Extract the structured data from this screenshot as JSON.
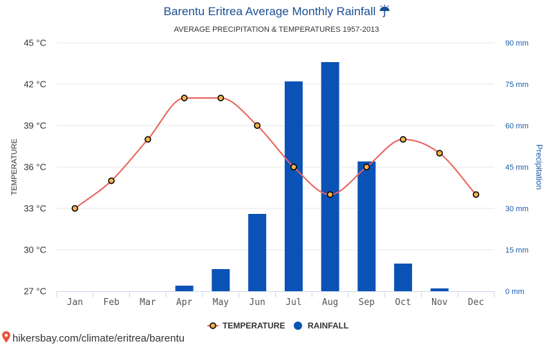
{
  "colors": {
    "title": "#1b4f96",
    "temperature_line": "#e8625c",
    "temperature_marker": "#f4b24a",
    "rainfall_bar": "#0a52b5",
    "right_axis": "#1a5aa8",
    "grid": "#e6e6e6",
    "axis_line": "#ccd6eb",
    "footer_pin": "#e8543a"
  },
  "title_icon": "umbrella-icon",
  "footer": {
    "icon": "location-pin-icon",
    "text": "hikersbay.com/climate/eritrea/barentu"
  },
  "chart_data": {
    "type": "bar",
    "title": "Barentu Eritrea Average Monthly Rainfall",
    "subtitle": "AVERAGE PRECIPITATION & TEMPERATURES 1957-2013",
    "categories": [
      "Jan",
      "Feb",
      "Mar",
      "Apr",
      "May",
      "Jun",
      "Jul",
      "Aug",
      "Sep",
      "Oct",
      "Nov",
      "Dec"
    ],
    "series": [
      {
        "name": "TEMPERATURE",
        "type": "line",
        "axis": "left",
        "unit": "°C",
        "values": [
          33,
          35,
          38,
          41,
          41,
          39,
          36,
          34,
          36,
          38,
          37,
          34
        ]
      },
      {
        "name": "RAINFALL",
        "type": "bar",
        "axis": "right",
        "unit": "mm",
        "values": [
          0,
          0,
          0,
          2,
          8,
          28,
          76,
          83,
          47,
          10,
          1,
          0
        ]
      }
    ],
    "ylabel_left": "TEMPERATURE",
    "ylabel_right": "Precipitation",
    "ylim_left": [
      27,
      45
    ],
    "ylim_right": [
      0,
      90
    ],
    "yticks_left": [
      "27 °C",
      "30 °C",
      "33 °C",
      "36 °C",
      "39 °C",
      "42 °C",
      "45 °C"
    ],
    "yticks_right": [
      "0 mm",
      "15 mm",
      "30 mm",
      "45 mm",
      "60 mm",
      "75 mm",
      "90 mm"
    ],
    "grid": true,
    "legend_placement": "bottom-center"
  }
}
